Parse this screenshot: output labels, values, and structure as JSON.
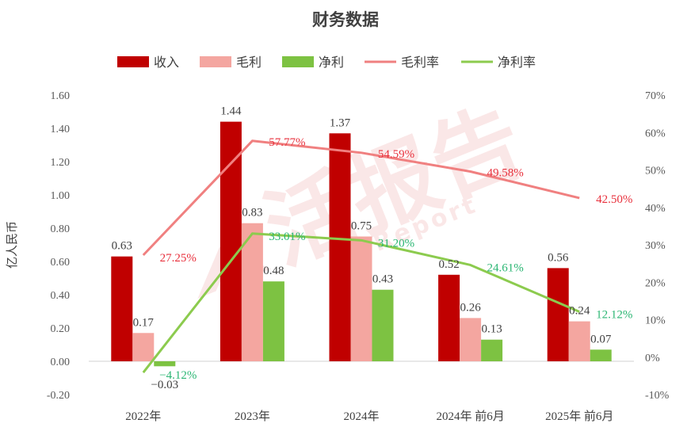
{
  "chart_data": {
    "type": "bar",
    "title": "财务数据",
    "ylabel": "亿人民币",
    "categories": [
      "2022年",
      "2023年",
      "2024年",
      "2024年 前6月",
      "2025年 前6月"
    ],
    "ylim": [
      -0.2,
      1.6
    ],
    "y_ticks": [
      "-0.20",
      "0.00",
      "0.20",
      "0.40",
      "0.60",
      "0.80",
      "1.00",
      "1.20",
      "1.40",
      "1.60"
    ],
    "y2lim": [
      -10,
      70
    ],
    "y2_ticks": [
      "-10%",
      "0%",
      "10%",
      "20%",
      "30%",
      "40%",
      "50%",
      "60%",
      "70%"
    ],
    "legend_position": "top",
    "grid": false,
    "series": [
      {
        "name": "收入",
        "kind": "bar",
        "axis": "left",
        "color": "#C00000",
        "values": [
          0.63,
          1.44,
          1.37,
          0.52,
          0.56
        ],
        "labels": [
          "0.63",
          "1.44",
          "1.37",
          "0.52",
          "0.56"
        ]
      },
      {
        "name": "毛利",
        "kind": "bar",
        "axis": "left",
        "color": "#F4A6A0",
        "values": [
          0.17,
          0.83,
          0.75,
          0.26,
          0.24
        ],
        "labels": [
          "0.17",
          "0.83",
          "0.75",
          "0.26",
          "0.24"
        ]
      },
      {
        "name": "净利",
        "kind": "bar",
        "axis": "left",
        "color": "#7DC242",
        "values": [
          -0.03,
          0.48,
          0.43,
          0.13,
          0.07
        ],
        "labels": [
          "−0.03",
          "0.48",
          "0.43",
          "0.13",
          "0.07"
        ]
      },
      {
        "name": "毛利率",
        "kind": "line",
        "axis": "right",
        "color": "#F08080",
        "label_color": "#E8303C",
        "values": [
          27.25,
          57.77,
          54.59,
          49.58,
          42.5
        ],
        "labels": [
          "27.25%",
          "57.77%",
          "54.59%",
          "49.58%",
          "42.50%"
        ]
      },
      {
        "name": "净利率",
        "kind": "line",
        "axis": "right",
        "color": "#8CCB4E",
        "label_color": "#2BB673",
        "values": [
          -4.12,
          33.01,
          31.2,
          24.61,
          12.12
        ],
        "labels": [
          "−4.12%",
          "33.01%",
          "31.20%",
          "24.61%",
          "12.12%"
        ]
      }
    ]
  },
  "watermark": {
    "text": "活报告",
    "subtext": "LI Report"
  }
}
